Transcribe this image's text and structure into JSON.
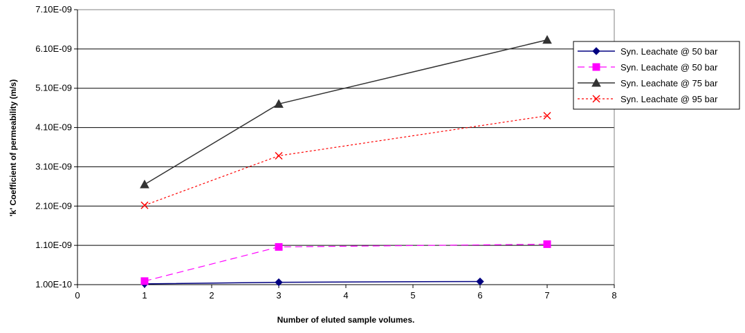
{
  "chart_data": {
    "type": "line",
    "title": "",
    "xlabel": "Number of eluted sample volumes.",
    "ylabel": "'k' Coefficient of permeability (m/s)",
    "xlim": [
      0,
      8
    ],
    "ylim": [
      1e-10,
      7.1e-09
    ],
    "x_ticks": [
      0,
      1,
      2,
      3,
      4,
      5,
      6,
      7,
      8
    ],
    "x_tick_labels": [
      "0",
      "1",
      "2",
      "3",
      "4",
      "5",
      "6",
      "7",
      "8"
    ],
    "y_ticks": [
      1e-10,
      1.1e-09,
      2.1e-09,
      3.1e-09,
      4.1e-09,
      5.1e-09,
      6.1e-09,
      7.1e-09
    ],
    "y_tick_labels": [
      "1.00E-10",
      "1.10E-09",
      "2.10E-09",
      "3.10E-09",
      "4.10E-09",
      "5.10E-09",
      "6.10E-09",
      "7.10E-09"
    ],
    "grid": "horizontal",
    "legend_position": "right",
    "series": [
      {
        "name": "Syn. Leachate @ 50 bar",
        "color": "#000080",
        "marker": "diamond",
        "line_style": "solid",
        "points": [
          [
            1,
            1.2e-10
          ],
          [
            3,
            1.6e-10
          ],
          [
            6,
            1.8e-10
          ]
        ]
      },
      {
        "name": "Syn. Leachate @ 50 bar",
        "color": "#ff00ff",
        "marker": "square",
        "line_style": "dashed",
        "points": [
          [
            1,
            1.9e-10
          ],
          [
            3,
            1.06e-09
          ],
          [
            7,
            1.13e-09
          ]
        ]
      },
      {
        "name": "Syn. Leachate @ 75 bar",
        "color": "#333333",
        "marker": "triangle",
        "line_style": "solid",
        "points": [
          [
            1,
            2.65e-09
          ],
          [
            3,
            4.7e-09
          ],
          [
            7,
            6.33e-09
          ]
        ]
      },
      {
        "name": "Syn. Leachate @ 95 bar",
        "color": "#ff0000",
        "marker": "x",
        "line_style": "dotted",
        "points": [
          [
            1,
            2.12e-09
          ],
          [
            3,
            3.38e-09
          ],
          [
            7,
            4.4e-09
          ]
        ]
      }
    ]
  }
}
